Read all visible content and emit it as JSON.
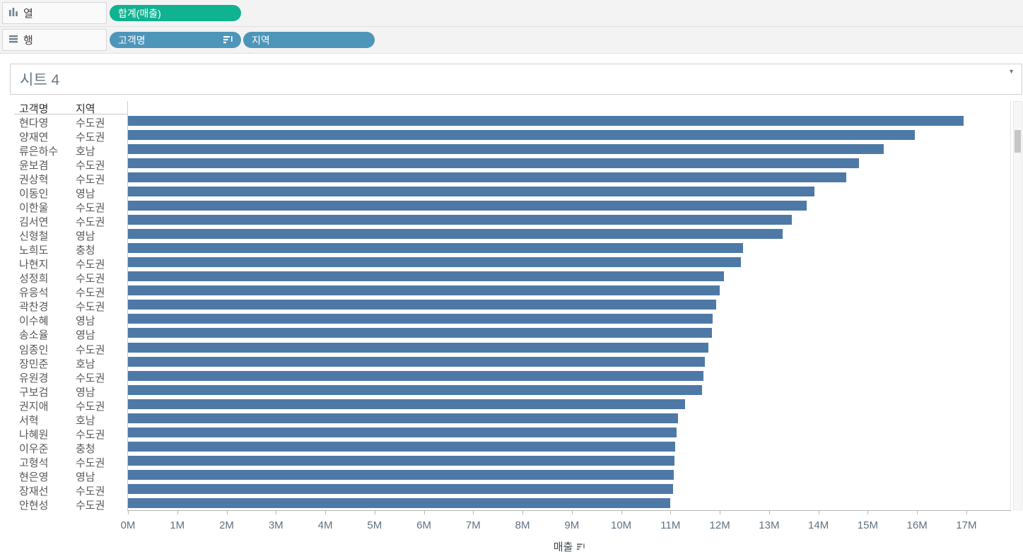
{
  "icons": {
    "title_caret": "▼"
  },
  "colors": {
    "measure_pill": "#0fb291",
    "dimension_pill": "#4e95ba",
    "bar": "#4e79a7"
  },
  "shelves": {
    "columns_shelf": {
      "label": "열",
      "pills": [
        {
          "label": "합계(매출)",
          "type": "continuous-measure"
        }
      ]
    },
    "rows_shelf": {
      "label": "행",
      "pills": [
        {
          "label": "고객명",
          "type": "discrete-dimension",
          "sorted": true
        },
        {
          "label": "지역",
          "type": "discrete-dimension",
          "sorted": false
        }
      ]
    }
  },
  "sheet": {
    "title": "시트 4"
  },
  "chart_data": {
    "type": "bar",
    "orientation": "horizontal",
    "title": "시트 4",
    "column_headers": [
      "고객명",
      "지역"
    ],
    "xlabel": "매출",
    "xlabel_sorted_descending": true,
    "values_unit": "millions",
    "x_axis_max": 17.89,
    "x_ticks": [
      "0M",
      "1M",
      "2M",
      "3M",
      "4M",
      "5M",
      "6M",
      "7M",
      "8M",
      "9M",
      "10M",
      "11M",
      "12M",
      "13M",
      "14M",
      "15M",
      "16M",
      "17M"
    ],
    "bar_color": "#4e79a7",
    "rows": [
      {
        "name": "현다영",
        "region": "수도권",
        "value": 16.95
      },
      {
        "name": "양재연",
        "region": "수도권",
        "value": 15.95
      },
      {
        "name": "류은하수",
        "region": "호남",
        "value": 15.32
      },
      {
        "name": "윤보겸",
        "region": "수도권",
        "value": 14.82
      },
      {
        "name": "권상혁",
        "region": "수도권",
        "value": 14.56
      },
      {
        "name": "이동인",
        "region": "영남",
        "value": 13.92
      },
      {
        "name": "이한울",
        "region": "수도권",
        "value": 13.76
      },
      {
        "name": "김서연",
        "region": "수도권",
        "value": 13.46
      },
      {
        "name": "신형철",
        "region": "영남",
        "value": 13.27
      },
      {
        "name": "노희도",
        "region": "충청",
        "value": 12.47
      },
      {
        "name": "나현지",
        "region": "수도권",
        "value": 12.43
      },
      {
        "name": "성정희",
        "region": "수도권",
        "value": 12.08
      },
      {
        "name": "유응석",
        "region": "수도권",
        "value": 12.0
      },
      {
        "name": "곽찬경",
        "region": "수도권",
        "value": 11.93
      },
      {
        "name": "이수혜",
        "region": "영남",
        "value": 11.85
      },
      {
        "name": "송소율",
        "region": "영남",
        "value": 11.84
      },
      {
        "name": "임종인",
        "region": "수도권",
        "value": 11.77
      },
      {
        "name": "장민준",
        "region": "호남",
        "value": 11.7
      },
      {
        "name": "유원경",
        "region": "수도권",
        "value": 11.67
      },
      {
        "name": "구보검",
        "region": "영남",
        "value": 11.64
      },
      {
        "name": "권지애",
        "region": "수도권",
        "value": 11.3
      },
      {
        "name": "서혁",
        "region": "호남",
        "value": 11.15
      },
      {
        "name": "나혜원",
        "region": "수도권",
        "value": 11.12
      },
      {
        "name": "이우준",
        "region": "충청",
        "value": 11.1
      },
      {
        "name": "고형석",
        "region": "수도권",
        "value": 11.08
      },
      {
        "name": "현은영",
        "region": "영남",
        "value": 11.07
      },
      {
        "name": "장재선",
        "region": "수도권",
        "value": 11.05
      },
      {
        "name": "안현성",
        "region": "수도권",
        "value": 11.0
      }
    ]
  }
}
